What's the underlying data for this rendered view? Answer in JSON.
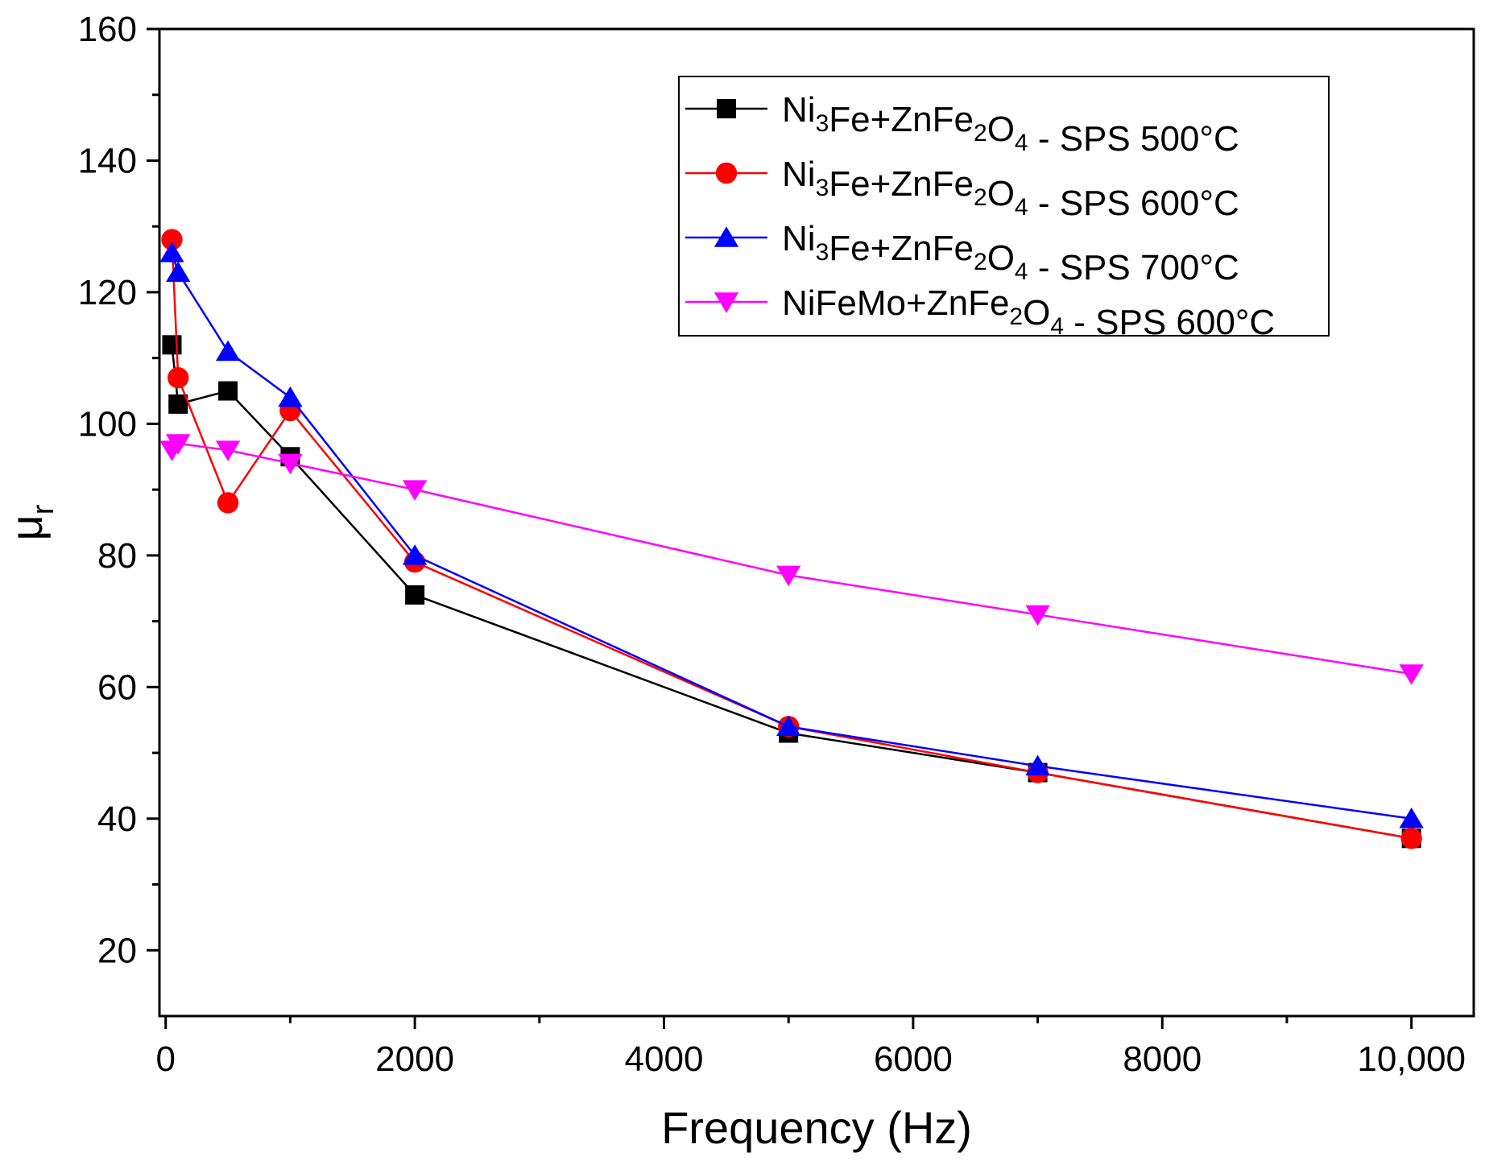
{
  "chart_data": {
    "type": "line",
    "xlabel": "Frequency (Hz)",
    "ylabel": {
      "base": "μ",
      "sub": "r"
    },
    "xlim": [
      -50,
      10500
    ],
    "ylim": [
      10,
      160
    ],
    "x_ticks": [
      {
        "value": 0,
        "label": "0"
      },
      {
        "value": 2000,
        "label": "2000"
      },
      {
        "value": 4000,
        "label": "4000"
      },
      {
        "value": 6000,
        "label": "6000"
      },
      {
        "value": 8000,
        "label": "8000"
      },
      {
        "value": 10000,
        "label": "10,000"
      }
    ],
    "y_ticks": [
      {
        "value": 20,
        "label": "20"
      },
      {
        "value": 40,
        "label": "40"
      },
      {
        "value": 60,
        "label": "60"
      },
      {
        "value": 80,
        "label": "80"
      },
      {
        "value": 100,
        "label": "100"
      },
      {
        "value": 120,
        "label": "120"
      },
      {
        "value": 140,
        "label": "140"
      },
      {
        "value": 160,
        "label": "160"
      }
    ],
    "x_minor_ticks": [
      1000,
      3000,
      5000,
      7000,
      9000
    ],
    "y_minor_ticks": [
      30,
      50,
      70,
      90,
      110,
      130,
      150
    ],
    "grid": false,
    "legend_position": "top-right",
    "series": [
      {
        "name": "Ni3Fe+ZnFe2O4 - SPS 500°C",
        "legend_parts": [
          {
            "t": "Ni",
            "sub": false
          },
          {
            "t": "3",
            "sub": true
          },
          {
            "t": "Fe+ZnFe",
            "sub": false
          },
          {
            "t": "2",
            "sub": true
          },
          {
            "t": "O",
            "sub": false
          },
          {
            "t": "4",
            "sub": true
          },
          {
            "t": " - SPS 500°C",
            "sub": false
          }
        ],
        "color": "#000000",
        "marker": "square",
        "x": [
          50,
          100,
          500,
          1000,
          2000,
          5000,
          7000,
          10000
        ],
        "y": [
          112,
          103,
          105,
          95,
          74,
          53,
          47,
          37
        ]
      },
      {
        "name": "Ni3Fe+ZnFe2O4 - SPS 600°C",
        "legend_parts": [
          {
            "t": "Ni",
            "sub": false
          },
          {
            "t": "3",
            "sub": true
          },
          {
            "t": "Fe+ZnFe",
            "sub": false
          },
          {
            "t": "2",
            "sub": true
          },
          {
            "t": "O",
            "sub": false
          },
          {
            "t": "4",
            "sub": true
          },
          {
            "t": " - SPS 600°C",
            "sub": false
          }
        ],
        "color": "#ff0000",
        "marker": "circle",
        "x": [
          50,
          100,
          500,
          1000,
          2000,
          5000,
          7000,
          10000
        ],
        "y": [
          128,
          107,
          88,
          102,
          79,
          54,
          47,
          37
        ]
      },
      {
        "name": "Ni3Fe+ZnFe2O4 - SPS 700°C",
        "legend_parts": [
          {
            "t": "Ni",
            "sub": false
          },
          {
            "t": "3",
            "sub": true
          },
          {
            "t": "Fe+ZnFe",
            "sub": false
          },
          {
            "t": "2",
            "sub": true
          },
          {
            "t": "O",
            "sub": false
          },
          {
            "t": "4",
            "sub": true
          },
          {
            "t": " - SPS 700°C",
            "sub": false
          }
        ],
        "color": "#0000ff",
        "marker": "triangle-up",
        "x": [
          50,
          100,
          500,
          1000,
          2000,
          5000,
          7000,
          10000
        ],
        "y": [
          126,
          123,
          111,
          104,
          80,
          54,
          48,
          40
        ]
      },
      {
        "name": "NiFeMo+ZnFe2O4 - SPS 600°C",
        "legend_parts": [
          {
            "t": "NiFeMo+ZnFe",
            "sub": false
          },
          {
            "t": "2",
            "sub": true
          },
          {
            "t": "O",
            "sub": false
          },
          {
            "t": "4",
            "sub": true
          },
          {
            "t": " - SPS 600°C",
            "sub": false
          }
        ],
        "color": "#ff00ff",
        "marker": "triangle-down",
        "x": [
          50,
          100,
          500,
          1000,
          2000,
          5000,
          7000,
          10000
        ],
        "y": [
          96,
          97,
          96,
          94,
          90,
          77,
          71,
          62
        ]
      }
    ]
  }
}
